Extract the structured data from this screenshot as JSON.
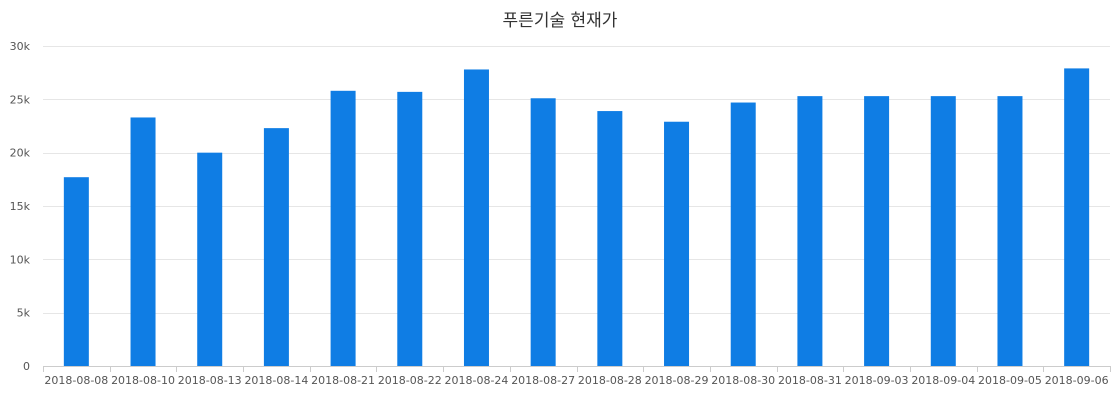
{
  "chart_data": {
    "type": "bar",
    "title": "푸른기술 현재가",
    "categories": [
      "2018-08-08",
      "2018-08-10",
      "2018-08-13",
      "2018-08-14",
      "2018-08-21",
      "2018-08-22",
      "2018-08-24",
      "2018-08-27",
      "2018-08-28",
      "2018-08-29",
      "2018-08-30",
      "2018-08-31",
      "2018-09-03",
      "2018-09-04",
      "2018-09-05",
      "2018-09-06"
    ],
    "values": [
      17700,
      23300,
      20000,
      22300,
      25800,
      25700,
      27800,
      25100,
      23900,
      22900,
      24700,
      25300,
      25300,
      25300,
      25300,
      27900
    ],
    "ylim": [
      0,
      30000
    ],
    "yticks": [
      0,
      5000,
      10000,
      15000,
      20000,
      25000,
      30000
    ],
    "ytick_labels": [
      "0",
      "5k",
      "10k",
      "15k",
      "20k",
      "25k",
      "30k"
    ],
    "xlabel": "",
    "ylabel": "",
    "grid": true,
    "legend": "none",
    "colors": {
      "bar": "#0f7de4",
      "grid": "#e6e6e6",
      "axis": "#cccccc",
      "tick_text": "#555555"
    }
  }
}
